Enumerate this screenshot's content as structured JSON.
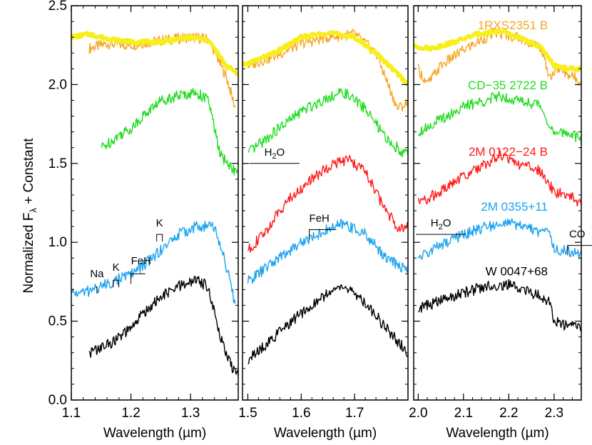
{
  "chart_data": {
    "type": "line",
    "ylabel_main": "Normalized F",
    "ylabel_sub": "λ",
    "ylabel_tail": " + Constant",
    "xlabel": "Wavelength (µm)",
    "ylim": [
      0.0,
      2.5
    ],
    "yticks": [
      "0.0",
      "0.5",
      "1.0",
      "1.5",
      "2.0",
      "2.5"
    ],
    "panels": [
      {
        "xlim": [
          1.1,
          1.38
        ],
        "xticks": [
          "1.1",
          "1.2",
          "1.3"
        ],
        "xtick_values": [
          1.1,
          1.2,
          1.3
        ]
      },
      {
        "xlim": [
          1.49,
          1.8
        ],
        "xticks": [
          "1.5",
          "1.6",
          "1.7"
        ],
        "xtick_values": [
          1.5,
          1.6,
          1.7
        ]
      },
      {
        "xlim": [
          1.99,
          2.36
        ],
        "xticks": [
          "2.0",
          "2.1",
          "2.2",
          "2.3"
        ],
        "xtick_values": [
          2.0,
          2.1,
          2.2,
          2.3
        ]
      }
    ],
    "series": [
      {
        "name": "1RXS2351 B",
        "color": "#f5a623",
        "label_panel": 2,
        "panels": [
          {
            "x": [
              1.13,
              1.16,
              1.2,
              1.25,
              1.3,
              1.33,
              1.36,
              1.375
            ],
            "y": [
              2.23,
              2.26,
              2.25,
              2.28,
              2.3,
              2.29,
              2.05,
              1.85
            ]
          },
          {
            "x": [
              1.5,
              1.55,
              1.6,
              1.65,
              1.7,
              1.74,
              1.78,
              1.8
            ],
            "y": [
              2.12,
              2.18,
              2.26,
              2.3,
              2.32,
              2.2,
              1.85,
              1.88
            ]
          },
          {
            "x": [
              2.0,
              2.02,
              2.05,
              2.1,
              2.17,
              2.22,
              2.27,
              2.29,
              2.31,
              2.36
            ],
            "y": [
              2.1,
              2.0,
              2.12,
              2.22,
              2.33,
              2.3,
              2.24,
              2.05,
              2.1,
              2.02
            ]
          }
        ]
      },
      {
        "name": "",
        "color": "#f7ee1a",
        "label_panel": 2,
        "panels": [
          {
            "x": [
              1.1,
              1.13,
              1.15,
              1.18,
              1.2,
              1.25,
              1.3,
              1.33,
              1.36,
              1.38
            ],
            "y": [
              2.3,
              2.32,
              2.3,
              2.28,
              2.27,
              2.27,
              2.3,
              2.28,
              2.12,
              2.07
            ]
          },
          {
            "x": [
              1.49,
              1.55,
              1.6,
              1.65,
              1.7,
              1.74,
              1.78,
              1.8
            ],
            "y": [
              2.12,
              2.2,
              2.3,
              2.33,
              2.3,
              2.2,
              2.07,
              2.0
            ]
          },
          {
            "x": [
              1.99,
              2.03,
              2.08,
              2.13,
              2.18,
              2.22,
              2.27,
              2.3,
              2.33,
              2.36
            ],
            "y": [
              2.24,
              2.23,
              2.27,
              2.32,
              2.34,
              2.3,
              2.24,
              2.12,
              2.1,
              2.1
            ]
          }
        ]
      },
      {
        "name": "CD−35 2722 B",
        "color": "#22dd22",
        "label_panel": 2,
        "panels": [
          {
            "x": [
              1.15,
              1.16,
              1.18,
              1.2,
              1.22,
              1.25,
              1.28,
              1.31,
              1.33,
              1.35,
              1.38
            ],
            "y": [
              1.6,
              1.62,
              1.68,
              1.72,
              1.8,
              1.9,
              1.93,
              1.95,
              1.9,
              1.55,
              1.43
            ]
          },
          {
            "x": [
              1.5,
              1.55,
              1.6,
              1.65,
              1.68,
              1.72,
              1.76,
              1.8
            ],
            "y": [
              1.56,
              1.7,
              1.83,
              1.92,
              1.95,
              1.85,
              1.65,
              1.55
            ]
          },
          {
            "x": [
              2.0,
              2.05,
              2.1,
              2.15,
              2.18,
              2.22,
              2.27,
              2.3,
              2.33,
              2.36
            ],
            "y": [
              1.7,
              1.78,
              1.86,
              1.9,
              1.93,
              1.9,
              1.87,
              1.68,
              1.7,
              1.65
            ]
          }
        ]
      },
      {
        "name": "2M 0122−24 B",
        "color": "#ff1a1a",
        "label_panel": 2,
        "panels": [],
        "panels_by_index": {
          "1": {
            "x": [
              1.5,
              1.53,
              1.57,
              1.62,
              1.66,
              1.69,
              1.72,
              1.75,
              1.78,
              1.8
            ],
            "y": [
              0.95,
              1.05,
              1.25,
              1.4,
              1.5,
              1.52,
              1.45,
              1.25,
              1.1,
              1.1
            ]
          },
          "2": {
            "x": [
              2.0,
              2.05,
              2.1,
              2.15,
              2.18,
              2.22,
              2.27,
              2.3,
              2.33,
              2.36
            ],
            "y": [
              1.25,
              1.32,
              1.42,
              1.5,
              1.55,
              1.5,
              1.45,
              1.32,
              1.3,
              1.25
            ]
          }
        }
      },
      {
        "name": "2M 0355+11",
        "color": "#1aa3ee",
        "label_panel": 2,
        "panels": [
          {
            "x": [
              1.1,
              1.12,
              1.15,
              1.17,
              1.2,
              1.22,
              1.25,
              1.28,
              1.31,
              1.34,
              1.36,
              1.375
            ],
            "y": [
              0.68,
              0.68,
              0.72,
              0.75,
              0.8,
              0.85,
              0.95,
              1.05,
              1.1,
              1.1,
              0.85,
              0.6
            ]
          },
          {
            "x": [
              1.5,
              1.55,
              1.6,
              1.65,
              1.68,
              1.72,
              1.76,
              1.8
            ],
            "y": [
              0.75,
              0.88,
              1.0,
              1.08,
              1.12,
              1.05,
              0.9,
              0.82
            ]
          },
          {
            "x": [
              2.0,
              2.05,
              2.1,
              2.15,
              2.2,
              2.25,
              2.29,
              2.3,
              2.33,
              2.36
            ],
            "y": [
              0.9,
              0.98,
              1.05,
              1.1,
              1.12,
              1.08,
              1.05,
              0.95,
              0.95,
              0.92
            ]
          }
        ]
      },
      {
        "name": "W 0047+68",
        "color": "#000000",
        "label_panel": 2,
        "panels": [
          {
            "x": [
              1.13,
              1.15,
              1.17,
              1.2,
              1.22,
              1.25,
              1.28,
              1.31,
              1.33,
              1.35,
              1.37,
              1.38
            ],
            "y": [
              0.3,
              0.33,
              0.37,
              0.45,
              0.55,
              0.65,
              0.72,
              0.76,
              0.72,
              0.4,
              0.2,
              0.15
            ]
          },
          {
            "x": [
              1.5,
              1.55,
              1.6,
              1.65,
              1.68,
              1.72,
              1.76,
              1.8
            ],
            "y": [
              0.25,
              0.4,
              0.55,
              0.68,
              0.72,
              0.62,
              0.45,
              0.3
            ]
          },
          {
            "x": [
              2.0,
              2.05,
              2.1,
              2.15,
              2.2,
              2.25,
              2.29,
              2.3,
              2.33,
              2.36
            ],
            "y": [
              0.58,
              0.63,
              0.68,
              0.72,
              0.73,
              0.68,
              0.63,
              0.5,
              0.47,
              0.47
            ]
          }
        ]
      }
    ],
    "annotations": [
      {
        "panel": 0,
        "label": "Na",
        "x": 1.143,
        "y_line": 0.72,
        "y_text": 0.78
      },
      {
        "panel": 0,
        "label": "K",
        "x": 1.175,
        "y_line": 0.76,
        "y_text": 0.82
      },
      {
        "panel": 0,
        "label": "FeH",
        "x": 1.2,
        "y_line": 0.8,
        "y_text": 0.86
      },
      {
        "panel": 0,
        "label": "K",
        "x": 1.248,
        "y_line": 1.05,
        "y_text": 1.1
      },
      {
        "panel": 1,
        "label": "H2O",
        "x": 1.55,
        "y_line": 1.5,
        "y_text": 1.55
      },
      {
        "panel": 1,
        "label": "FeH",
        "x": 1.615,
        "y_line": 1.08,
        "y_text": 1.13
      },
      {
        "panel": 2,
        "label": "H2O",
        "x": 2.05,
        "y_line": 1.05,
        "y_text": 1.1
      },
      {
        "panel": 2,
        "label": "CO",
        "x": 2.33,
        "y_line": 0.98,
        "y_text": 1.03
      }
    ],
    "feature_text": {
      "Na": "Na",
      "K": "K",
      "FeH": "FeH",
      "H2O_main": "H",
      "H2O_sub": "2",
      "H2O_tail": "O",
      "CO": "CO"
    }
  }
}
